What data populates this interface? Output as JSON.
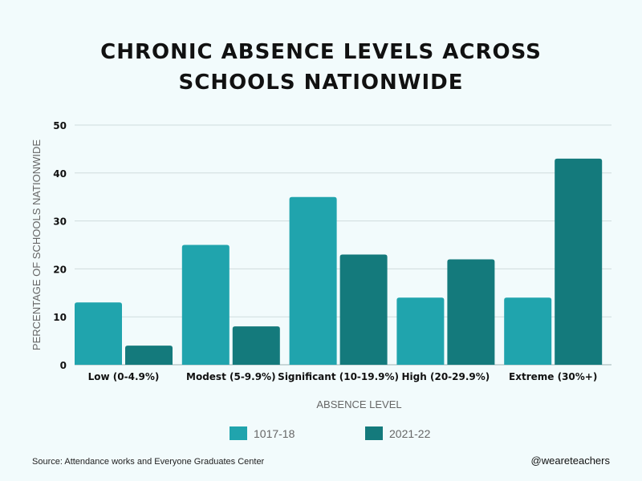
{
  "chart_data": {
    "type": "bar",
    "title": [
      "CHRONIC ABSENCE LEVELS ACROSS",
      "SCHOOLS NATIONWIDE"
    ],
    "xlabel": "ABSENCE LEVEL",
    "ylabel": "PERCENTAGE OF SCHOOLS NATIONWIDE",
    "ylim": [
      0,
      50
    ],
    "yticks": [
      0,
      10,
      20,
      30,
      40,
      50
    ],
    "grid": true,
    "legend_position": "bottom",
    "categories": [
      "Low (0-4.9%)",
      "Modest (5-9.9%)",
      "Significant (10-19.9%)",
      "High (20-29.9%)",
      "Extreme (30%+)"
    ],
    "series": [
      {
        "name": "1017-18",
        "color": "#20a4ad",
        "values": [
          13,
          25,
          35,
          14,
          14
        ]
      },
      {
        "name": "2021-22",
        "color": "#147a7c",
        "values": [
          4,
          8,
          23,
          22,
          43
        ]
      }
    ]
  },
  "footer": {
    "source": "Source: Attendance works and Everyone Graduates Center",
    "handle": "@weareteachers"
  }
}
